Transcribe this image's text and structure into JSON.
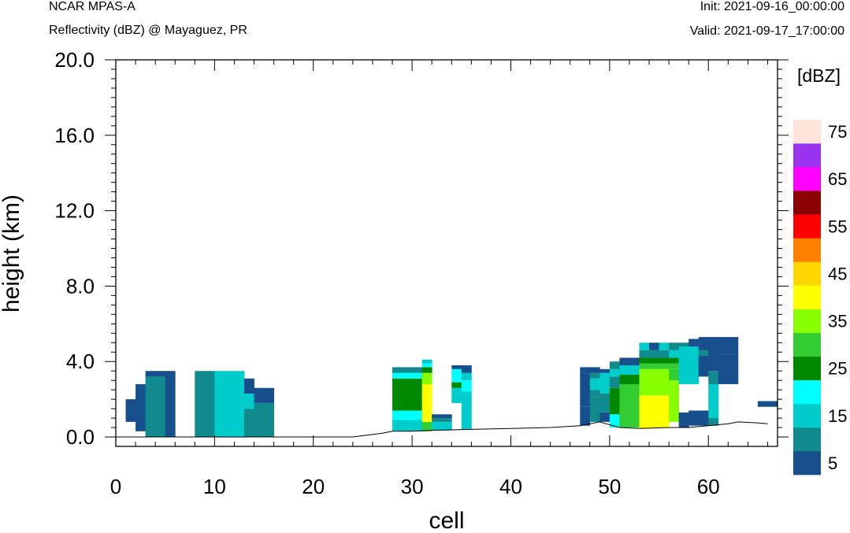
{
  "header": {
    "title_left": "NCAR MPAS-A",
    "subtitle_left": "Reflectivity (dBZ) @ Mayaguez, PR",
    "init_text": "Init: 2021-09-16_00:00:00",
    "valid_text": "Valid: 2021-09-17_17:00:00"
  },
  "chart_data": {
    "type": "heatmap",
    "title": "",
    "xlabel": "cell",
    "ylabel": "height (km)",
    "xlim": [
      0,
      67
    ],
    "ylim": [
      -0.5,
      20.0
    ],
    "x_ticks": [
      0,
      10,
      20,
      30,
      40,
      50,
      60
    ],
    "x_tick_labels": [
      "0",
      "10",
      "20",
      "30",
      "40",
      "50",
      "60"
    ],
    "y_ticks": [
      0.0,
      4.0,
      8.0,
      12.0,
      16.0,
      20.0
    ],
    "y_tick_labels": [
      "0.0",
      "4.0",
      "8.0",
      "12.0",
      "16.0",
      "20.0"
    ],
    "colorbar": {
      "label": "[dBZ]",
      "levels": [
        5,
        10,
        15,
        20,
        25,
        30,
        35,
        40,
        45,
        50,
        55,
        60,
        65,
        70,
        75
      ],
      "tick_labels": [
        "5",
        "15",
        "25",
        "35",
        "45",
        "55",
        "65",
        "75"
      ],
      "colors": [
        "#174f8c",
        "#108a8c",
        "#00cccc",
        "#00ffff",
        "#008800",
        "#33cc33",
        "#88ff00",
        "#ffff00",
        "#ffd700",
        "#ff8000",
        "#ff0000",
        "#8b0000",
        "#ff00ff",
        "#9933ee",
        "#ffe4dc"
      ]
    },
    "terrain": [
      [
        0,
        0
      ],
      [
        15,
        0
      ],
      [
        24,
        0
      ],
      [
        27,
        0.2
      ],
      [
        28,
        0.3
      ],
      [
        30,
        0.3
      ],
      [
        32,
        0.35
      ],
      [
        36,
        0.4
      ],
      [
        40,
        0.45
      ],
      [
        44,
        0.5
      ],
      [
        47,
        0.6
      ],
      [
        49,
        0.8
      ],
      [
        51,
        0.5
      ],
      [
        53,
        0.45
      ],
      [
        56,
        0.5
      ],
      [
        58,
        0.5
      ],
      [
        60,
        0.6
      ],
      [
        62,
        0.7
      ],
      [
        63,
        0.8
      ],
      [
        65,
        0.75
      ],
      [
        66,
        0.7
      ]
    ],
    "cells": [
      [
        1,
        1.4,
        2.0,
        5
      ],
      [
        1,
        0.8,
        1.4,
        5
      ],
      [
        2,
        0.3,
        2.8,
        5
      ],
      [
        3,
        0,
        3.2,
        10
      ],
      [
        3,
        3.2,
        3.5,
        5
      ],
      [
        4,
        0,
        3.2,
        10
      ],
      [
        4,
        3.2,
        3.5,
        5
      ],
      [
        5,
        0,
        3.5,
        5
      ],
      [
        8,
        0,
        3.5,
        10
      ],
      [
        9,
        0,
        3.5,
        10
      ],
      [
        10,
        0,
        3.5,
        15
      ],
      [
        11,
        0,
        3.5,
        15
      ],
      [
        12,
        0,
        3.5,
        15
      ],
      [
        13,
        0,
        1.5,
        10
      ],
      [
        13,
        1.5,
        2.3,
        15
      ],
      [
        13,
        2.3,
        3.1,
        5
      ],
      [
        14,
        0,
        1.8,
        10
      ],
      [
        14,
        1.8,
        2.6,
        5
      ],
      [
        15,
        0,
        1.8,
        10
      ],
      [
        15,
        1.8,
        2.6,
        5
      ],
      [
        28,
        0.3,
        0.9,
        15
      ],
      [
        28,
        0.9,
        1.4,
        20
      ],
      [
        28,
        1.4,
        3.1,
        25
      ],
      [
        28,
        3.1,
        3.4,
        20
      ],
      [
        28,
        3.4,
        3.7,
        10
      ],
      [
        29,
        0.3,
        0.9,
        15
      ],
      [
        29,
        0.9,
        1.4,
        20
      ],
      [
        29,
        1.4,
        3.1,
        25
      ],
      [
        29,
        3.1,
        3.4,
        20
      ],
      [
        29,
        3.4,
        3.7,
        10
      ],
      [
        30,
        0.3,
        0.9,
        15
      ],
      [
        30,
        0.9,
        1.4,
        20
      ],
      [
        30,
        1.4,
        3.1,
        25
      ],
      [
        30,
        3.1,
        3.4,
        20
      ],
      [
        30,
        3.4,
        3.7,
        10
      ],
      [
        31,
        0.3,
        0.8,
        30
      ],
      [
        31,
        0.8,
        2.8,
        40
      ],
      [
        31,
        2.8,
        3.4,
        35
      ],
      [
        31,
        3.4,
        3.7,
        25
      ],
      [
        31,
        3.7,
        3.9,
        20
      ],
      [
        31,
        3.9,
        4.1,
        15
      ],
      [
        32,
        0.35,
        0.8,
        15
      ],
      [
        32,
        0.8,
        1.0,
        10
      ],
      [
        32,
        1.0,
        1.2,
        5
      ],
      [
        33,
        0.35,
        0.8,
        15
      ],
      [
        33,
        0.8,
        1.0,
        10
      ],
      [
        33,
        1.0,
        1.2,
        5
      ],
      [
        34,
        1.8,
        2.6,
        15
      ],
      [
        34,
        2.6,
        2.9,
        25
      ],
      [
        34,
        2.9,
        3.6,
        20
      ],
      [
        34,
        3.6,
        3.8,
        5
      ],
      [
        35,
        0.4,
        2.4,
        15
      ],
      [
        35,
        2.4,
        3.0,
        20
      ],
      [
        35,
        3.0,
        3.4,
        15
      ],
      [
        35,
        3.4,
        3.8,
        5
      ],
      [
        47,
        0.6,
        1.6,
        5
      ],
      [
        47,
        1.6,
        3.4,
        5
      ],
      [
        47,
        3.4,
        3.7,
        5
      ],
      [
        48,
        0.8,
        2.1,
        10
      ],
      [
        48,
        2.1,
        2.5,
        10
      ],
      [
        48,
        2.5,
        3.1,
        15
      ],
      [
        48,
        3.1,
        3.4,
        10
      ],
      [
        48,
        3.4,
        3.7,
        5
      ],
      [
        49,
        0.8,
        1.3,
        5
      ],
      [
        49,
        1.3,
        2.3,
        10
      ],
      [
        49,
        2.3,
        2.8,
        15
      ],
      [
        49,
        2.8,
        3.4,
        15
      ],
      [
        49,
        3.4,
        3.6,
        5
      ],
      [
        50,
        0.5,
        1.2,
        20
      ],
      [
        50,
        1.2,
        2.6,
        25
      ],
      [
        50,
        2.6,
        3.2,
        10
      ],
      [
        50,
        3.2,
        3.6,
        15
      ],
      [
        50,
        3.6,
        4.0,
        10
      ],
      [
        51,
        0.5,
        2.8,
        30
      ],
      [
        51,
        2.8,
        3.3,
        25
      ],
      [
        51,
        3.3,
        3.8,
        15
      ],
      [
        51,
        3.8,
        4.2,
        5
      ],
      [
        52,
        0.5,
        2.8,
        30
      ],
      [
        52,
        2.8,
        3.3,
        25
      ],
      [
        52,
        3.3,
        3.8,
        15
      ],
      [
        52,
        3.8,
        4.2,
        5
      ],
      [
        53,
        0.45,
        2.2,
        40
      ],
      [
        53,
        2.2,
        3.6,
        35
      ],
      [
        53,
        3.6,
        3.9,
        30
      ],
      [
        53,
        3.9,
        4.2,
        25
      ],
      [
        53,
        4.2,
        4.6,
        10
      ],
      [
        53,
        4.6,
        5.0,
        15
      ],
      [
        54,
        0.45,
        2.2,
        40
      ],
      [
        54,
        2.2,
        3.6,
        35
      ],
      [
        54,
        3.6,
        3.9,
        30
      ],
      [
        54,
        3.9,
        4.2,
        25
      ],
      [
        54,
        4.2,
        4.6,
        10
      ],
      [
        54,
        4.6,
        5.0,
        5
      ],
      [
        55,
        0.5,
        2.2,
        40
      ],
      [
        55,
        2.2,
        3.6,
        35
      ],
      [
        55,
        3.6,
        3.9,
        30
      ],
      [
        55,
        3.9,
        4.2,
        25
      ],
      [
        55,
        4.2,
        4.6,
        10
      ],
      [
        55,
        4.6,
        5.0,
        15
      ],
      [
        56,
        0.8,
        3.0,
        35
      ],
      [
        56,
        3.0,
        3.6,
        30
      ],
      [
        56,
        3.6,
        3.9,
        30
      ],
      [
        56,
        3.9,
        4.2,
        25
      ],
      [
        56,
        4.2,
        4.6,
        15
      ],
      [
        56,
        4.6,
        5.0,
        10
      ],
      [
        57,
        0.5,
        1.3,
        5
      ],
      [
        57,
        2.8,
        4.8,
        15
      ],
      [
        57,
        4.8,
        5.0,
        10
      ],
      [
        58,
        0.6,
        1.4,
        5
      ],
      [
        58,
        2.8,
        4.8,
        15
      ],
      [
        58,
        4.8,
        5.2,
        5
      ],
      [
        59,
        0.6,
        1.4,
        5
      ],
      [
        59,
        3.2,
        4.3,
        5
      ],
      [
        59,
        4.3,
        4.6,
        10
      ],
      [
        59,
        4.6,
        5.3,
        5
      ],
      [
        60,
        0.6,
        1.0,
        10
      ],
      [
        60,
        1.0,
        2.8,
        15
      ],
      [
        60,
        2.8,
        3.5,
        10
      ],
      [
        60,
        3.5,
        5.3,
        5
      ],
      [
        61,
        2.8,
        4.4,
        5
      ],
      [
        61,
        4.4,
        5.3,
        5
      ],
      [
        62,
        2.8,
        4.4,
        5
      ],
      [
        62,
        4.4,
        5.3,
        5
      ],
      [
        65,
        1.6,
        1.9,
        5
      ],
      [
        66,
        1.6,
        1.9,
        5
      ]
    ]
  }
}
